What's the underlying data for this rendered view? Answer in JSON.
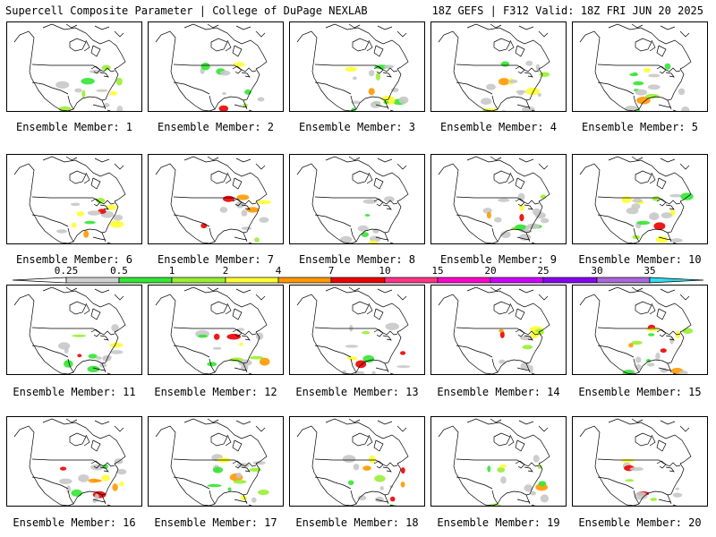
{
  "header": {
    "left": "Supercell Composite Parameter | College of DuPage NEXLAB",
    "right": "18Z GEFS | F312 Valid: 18Z FRI JUN 20 2025"
  },
  "colorbar": {
    "labels": [
      "0.25",
      "0.5",
      "1",
      "2",
      "4",
      "7",
      "10",
      "15",
      "20",
      "25",
      "30",
      "35"
    ],
    "colors": [
      "#d0d0d0",
      "#33e633",
      "#99ee33",
      "#ffff33",
      "#ff9900",
      "#ee0000",
      "#ff3388",
      "#ff00cc",
      "#cc00ff",
      "#8800ee",
      "#aa66dd",
      "#33ddee"
    ]
  },
  "map_colors": {
    "land": "#ffffff",
    "border": "#000000",
    "scp_025": "#c8c8c8",
    "scp_05": "#33e633",
    "scp_1": "#99ee33",
    "scp_2": "#ffff33",
    "scp_4": "#ff9900",
    "scp_7": "#ee0000"
  },
  "members": [
    {
      "label": "Ensemble Member: 1"
    },
    {
      "label": "Ensemble Member: 2"
    },
    {
      "label": "Ensemble Member: 3"
    },
    {
      "label": "Ensemble Member: 4"
    },
    {
      "label": "Ensemble Member: 5"
    },
    {
      "label": "Ensemble Member: 6"
    },
    {
      "label": "Ensemble Member: 7"
    },
    {
      "label": "Ensemble Member: 8"
    },
    {
      "label": "Ensemble Member: 9"
    },
    {
      "label": "Ensemble Member: 10"
    },
    {
      "label": "Ensemble Member: 11"
    },
    {
      "label": "Ensemble Member: 12"
    },
    {
      "label": "Ensemble Member: 13"
    },
    {
      "label": "Ensemble Member: 14"
    },
    {
      "label": "Ensemble Member: 15"
    },
    {
      "label": "Ensemble Member: 16"
    },
    {
      "label": "Ensemble Member: 17"
    },
    {
      "label": "Ensemble Member: 18"
    },
    {
      "label": "Ensemble Member: 19"
    },
    {
      "label": "Ensemble Member: 20"
    }
  ]
}
